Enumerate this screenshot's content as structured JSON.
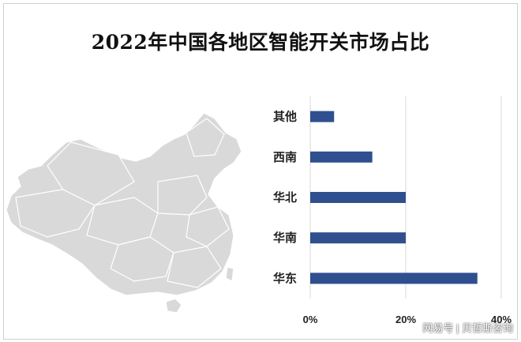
{
  "title": "2022年中国各地区智能开关市场占比",
  "watermark": "网易号 | 贝哲斯咨询",
  "colors": {
    "bar": "#2f4f8f",
    "map_fill": "#d9d9d9",
    "map_stroke": "#ffffff",
    "grid": "#d9d9d9"
  },
  "chart_data": {
    "type": "bar",
    "orientation": "horizontal",
    "title": "2022年中国各地区智能开关市场占比",
    "categories": [
      "其他",
      "西南",
      "华北",
      "华南",
      "华东"
    ],
    "values": [
      0.05,
      0.13,
      0.2,
      0.2,
      0.35
    ],
    "xlim": [
      0,
      0.4
    ],
    "ticks": [
      0,
      0.2,
      0.4
    ],
    "tick_labels": [
      "0%",
      "20%",
      "40%"
    ],
    "grid": true,
    "legend": "none"
  }
}
